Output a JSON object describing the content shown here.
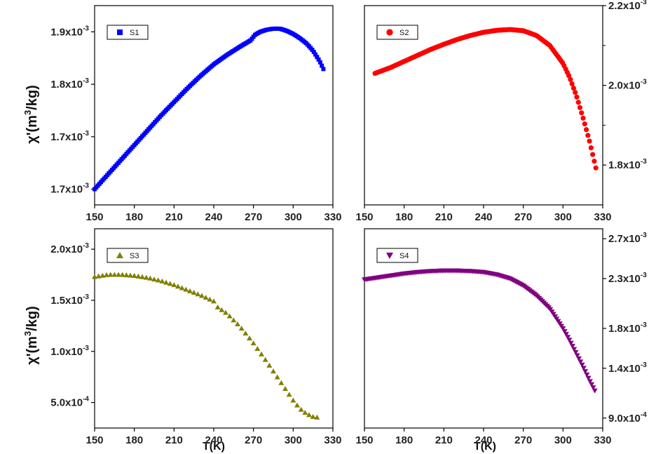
{
  "figure": {
    "y_label_main": "χ'(m",
    "y_label_exp": "3",
    "y_label_tail": "/kg)",
    "x_label": "T(K)"
  },
  "chart_data": [
    {
      "type": "scatter",
      "series": [
        {
          "name": "S1",
          "color": "#0000ff",
          "marker": "square",
          "x": [
            150,
            160,
            170,
            180,
            190,
            200,
            210,
            220,
            230,
            240,
            250,
            260,
            268,
            271,
            275,
            280,
            285,
            290,
            295,
            300,
            305,
            310,
            315,
            320,
            323
          ],
          "y": [
            0.0017,
            0.001714,
            0.001728,
            0.001742,
            0.001756,
            0.00177,
            0.001783,
            0.001796,
            0.001808,
            0.001819,
            0.001828,
            0.001836,
            0.001842,
            0.001847,
            0.00185,
            0.001852,
            0.001853,
            0.001853,
            0.001851,
            0.001848,
            0.001844,
            0.001839,
            0.001832,
            0.001822,
            0.001814
          ]
        }
      ],
      "xticks": [
        150,
        180,
        210,
        240,
        270,
        300,
        330
      ],
      "xlim": [
        150,
        330
      ],
      "ylim": [
        0.001685,
        0.001875
      ],
      "yticks": [
        0.0017,
        0.00175,
        0.0018,
        0.00185
      ],
      "ytick_labels": [
        {
          "mant": "1.7x10",
          "exp": "-3"
        },
        {
          "mant": "1.7x10",
          "exp": "-3"
        },
        {
          "mant": "1.8x10",
          "exp": "-3"
        },
        {
          "mant": "1.9x10",
          "exp": "-3"
        }
      ],
      "axis_side": "left",
      "legend_position": "top-left"
    },
    {
      "type": "scatter",
      "series": [
        {
          "name": "S2",
          "color": "#ff0000",
          "marker": "circle",
          "x": [
            158,
            170,
            180,
            190,
            200,
            210,
            220,
            230,
            240,
            250,
            260,
            270,
            280,
            290,
            300,
            305,
            310,
            315,
            320,
            325
          ],
          "y": [
            0.00203,
            0.002045,
            0.00206,
            0.002075,
            0.00209,
            0.002103,
            0.002115,
            0.002125,
            0.002133,
            0.002138,
            0.00214,
            0.002137,
            0.002125,
            0.0021,
            0.002055,
            0.00202,
            0.001975,
            0.00192,
            0.00186,
            0.00179
          ]
        }
      ],
      "xticks": [
        150,
        180,
        210,
        240,
        270,
        300,
        330
      ],
      "xlim": [
        150,
        330
      ],
      "ylim": [
        0.0017,
        0.0022
      ],
      "yticks": [
        0.0018,
        0.002,
        0.0022
      ],
      "minor_yticks": [
        0.0019,
        0.0021
      ],
      "ytick_labels": [
        {
          "mant": "1.8x10",
          "exp": "-3"
        },
        {
          "mant": "2.0x10",
          "exp": "-3"
        },
        {
          "mant": "2.2x10",
          "exp": "-3"
        }
      ],
      "axis_side": "right",
      "legend_position": "top-left"
    },
    {
      "type": "scatter",
      "series": [
        {
          "name": "S3",
          "color": "#808000",
          "marker": "triangle-up",
          "x": [
            150,
            160,
            170,
            180,
            190,
            200,
            210,
            220,
            230,
            240,
            241,
            250,
            260,
            270,
            280,
            290,
            300,
            305,
            310,
            315,
            320
          ],
          "y": [
            0.00173,
            0.00175,
            0.00175,
            0.00174,
            0.00172,
            0.00169,
            0.00165,
            0.0016,
            0.00155,
            0.00149,
            0.00145,
            0.00137,
            0.00124,
            0.00108,
            0.0009,
            0.00071,
            0.00052,
            0.00044,
            0.00039,
            0.00036,
            0.00035
          ]
        }
      ],
      "xticks": [
        150,
        180,
        210,
        240,
        270,
        300,
        330
      ],
      "xlim": [
        150,
        330
      ],
      "ylim": [
        0.00025,
        0.0022
      ],
      "yticks": [
        0.0005,
        0.001,
        0.0015,
        0.002
      ],
      "ytick_labels": [
        {
          "mant": "5.0x10",
          "exp": "-4"
        },
        {
          "mant": "1.0x10",
          "exp": "-3"
        },
        {
          "mant": "1.5x10",
          "exp": "-3"
        },
        {
          "mant": "2.0x10",
          "exp": "-3"
        }
      ],
      "axis_side": "left",
      "legend_position": "top-left"
    },
    {
      "type": "scatter",
      "series": [
        {
          "name": "S4",
          "color": "#800080",
          "marker": "triangle-down",
          "x": [
            150,
            160,
            170,
            180,
            190,
            200,
            210,
            220,
            230,
            240,
            250,
            260,
            270,
            280,
            290,
            300,
            305,
            310,
            315,
            320,
            325
          ],
          "y": [
            0.00229,
            0.00231,
            0.00233,
            0.00235,
            0.002365,
            0.002375,
            0.00238,
            0.00238,
            0.002375,
            0.002365,
            0.00234,
            0.0023,
            0.00223,
            0.00213,
            0.002,
            0.0018,
            0.00168,
            0.00155,
            0.00142,
            0.00128,
            0.00115
          ]
        }
      ],
      "xticks": [
        150,
        180,
        210,
        240,
        270,
        300,
        330
      ],
      "xlim": [
        150,
        330
      ],
      "ylim": [
        0.0008,
        0.0028
      ],
      "yticks": [
        0.0009,
        0.0014,
        0.0018,
        0.0023,
        0.0027
      ],
      "ytick_labels": [
        {
          "mant": "9.0x10",
          "exp": "-4"
        },
        {
          "mant": "1.4x10",
          "exp": "-3"
        },
        {
          "mant": "1.8x10",
          "exp": "-3"
        },
        {
          "mant": "2.3x10",
          "exp": "-3"
        },
        {
          "mant": "2.7x10",
          "exp": "-3"
        }
      ],
      "axis_side": "right",
      "legend_position": "top-left"
    }
  ]
}
